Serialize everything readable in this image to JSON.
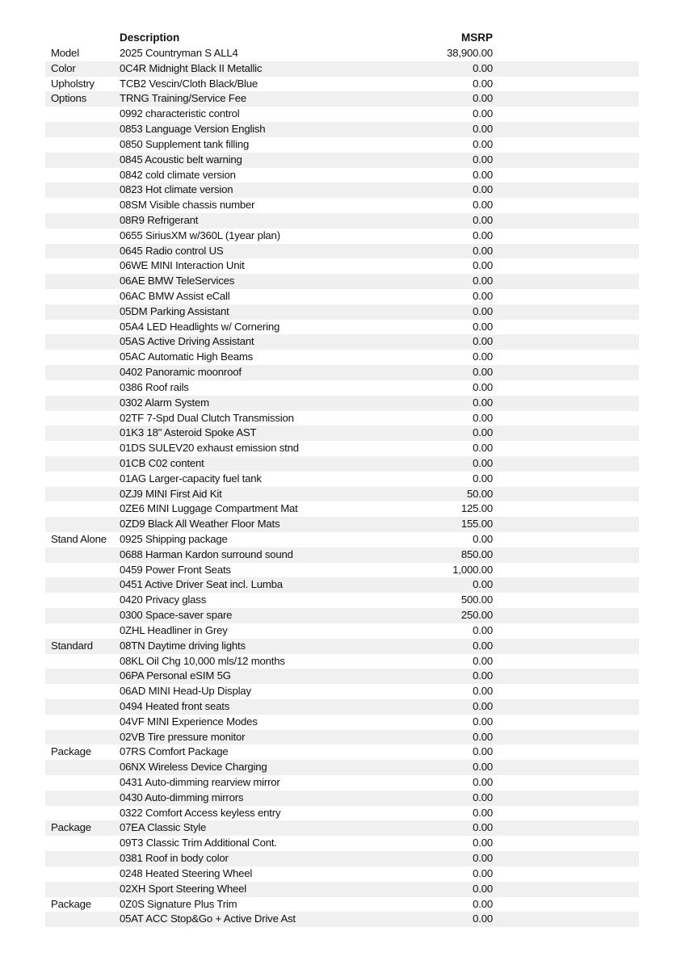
{
  "header": {
    "description": "Description",
    "msrp": "MSRP"
  },
  "rows": [
    {
      "category": "Model",
      "description": "2025 Countryman S ALL4",
      "msrp": "38,900.00"
    },
    {
      "category": "Color",
      "description": "0C4R Midnight Black II Metallic",
      "msrp": "0.00"
    },
    {
      "category": "Upholstry",
      "description": "TCB2 Vescin/Cloth Black/Blue",
      "msrp": "0.00"
    },
    {
      "category": "Options",
      "description": "TRNG Training/Service Fee",
      "msrp": "0.00"
    },
    {
      "category": "",
      "description": "0992 characteristic control",
      "msrp": "0.00"
    },
    {
      "category": "",
      "description": "0853 Language Version English",
      "msrp": "0.00"
    },
    {
      "category": "",
      "description": "0850 Supplement tank filling",
      "msrp": "0.00"
    },
    {
      "category": "",
      "description": "0845 Acoustic belt warning",
      "msrp": "0.00"
    },
    {
      "category": "",
      "description": "0842 cold climate version",
      "msrp": "0.00"
    },
    {
      "category": "",
      "description": "0823 Hot climate version",
      "msrp": "0.00"
    },
    {
      "category": "",
      "description": "08SM Visible chassis number",
      "msrp": "0.00"
    },
    {
      "category": "",
      "description": "08R9 Refrigerant",
      "msrp": "0.00"
    },
    {
      "category": "",
      "description": "0655 SiriusXM w/360L (1year plan)",
      "msrp": "0.00"
    },
    {
      "category": "",
      "description": "0645 Radio control US",
      "msrp": "0.00"
    },
    {
      "category": "",
      "description": "06WE MINI Interaction Unit",
      "msrp": "0.00"
    },
    {
      "category": "",
      "description": "06AE BMW TeleServices",
      "msrp": "0.00"
    },
    {
      "category": "",
      "description": "06AC BMW Assist eCall",
      "msrp": "0.00"
    },
    {
      "category": "",
      "description": "05DM Parking Assistant",
      "msrp": "0.00"
    },
    {
      "category": "",
      "description": "05A4 LED Headlights w/ Cornering",
      "msrp": "0.00"
    },
    {
      "category": "",
      "description": "05AS Active Driving Assistant",
      "msrp": "0.00"
    },
    {
      "category": "",
      "description": "05AC Automatic High Beams",
      "msrp": "0.00"
    },
    {
      "category": "",
      "description": "0402 Panoramic moonroof",
      "msrp": "0.00"
    },
    {
      "category": "",
      "description": "0386 Roof rails",
      "msrp": "0.00"
    },
    {
      "category": "",
      "description": "0302 Alarm System",
      "msrp": "0.00"
    },
    {
      "category": "",
      "description": "02TF 7-Spd Dual Clutch Transmission",
      "msrp": "0.00"
    },
    {
      "category": "",
      "description": "01K3 18\" Asteroid Spoke AST",
      "msrp": "0.00"
    },
    {
      "category": "",
      "description": "01DS SULEV20 exhaust emission stnd",
      "msrp": "0.00"
    },
    {
      "category": "",
      "description": "01CB C02 content",
      "msrp": "0.00"
    },
    {
      "category": "",
      "description": "01AG Larger-capacity fuel tank",
      "msrp": "0.00"
    },
    {
      "category": "",
      "description": "0ZJ9 MINI First Aid Kit",
      "msrp": "50.00"
    },
    {
      "category": "",
      "description": "0ZE6 MINI Luggage Compartment Mat",
      "msrp": "125.00"
    },
    {
      "category": "",
      "description": "0ZD9 Black All Weather Floor Mats",
      "msrp": "155.00"
    },
    {
      "category": "Stand Alone",
      "description": "0925 Shipping package",
      "msrp": "0.00"
    },
    {
      "category": "",
      "description": "0688 Harman Kardon surround sound",
      "msrp": "850.00"
    },
    {
      "category": "",
      "description": "0459 Power Front Seats",
      "msrp": "1,000.00"
    },
    {
      "category": "",
      "description": "0451 Active Driver Seat incl. Lumba",
      "msrp": "0.00"
    },
    {
      "category": "",
      "description": "0420 Privacy glass",
      "msrp": "500.00"
    },
    {
      "category": "",
      "description": "0300 Space-saver spare",
      "msrp": "250.00"
    },
    {
      "category": "",
      "description": "0ZHL Headliner in Grey",
      "msrp": "0.00"
    },
    {
      "category": "Standard",
      "description": "08TN Daytime driving lights",
      "msrp": "0.00"
    },
    {
      "category": "",
      "description": "08KL Oil Chg 10,000 mls/12 months",
      "msrp": "0.00"
    },
    {
      "category": "",
      "description": "06PA Personal eSIM 5G",
      "msrp": "0.00"
    },
    {
      "category": "",
      "description": "06AD MINI Head-Up Display",
      "msrp": "0.00"
    },
    {
      "category": "",
      "description": "0494 Heated front seats",
      "msrp": "0.00"
    },
    {
      "category": "",
      "description": "04VF MINI Experience Modes",
      "msrp": "0.00"
    },
    {
      "category": "",
      "description": "02VB Tire pressure monitor",
      "msrp": "0.00"
    },
    {
      "category": "Package",
      "description": "07RS Comfort Package",
      "msrp": "0.00"
    },
    {
      "category": "",
      "description": "06NX Wireless Device Charging",
      "msrp": "0.00"
    },
    {
      "category": "",
      "description": "0431 Auto-dimming rearview mirror",
      "msrp": "0.00"
    },
    {
      "category": "",
      "description": "0430 Auto-dimming mirrors",
      "msrp": "0.00"
    },
    {
      "category": "",
      "description": "0322 Comfort Access keyless entry",
      "msrp": "0.00"
    },
    {
      "category": "Package",
      "description": "07EA Classic Style",
      "msrp": "0.00"
    },
    {
      "category": "",
      "description": "09T3 Classic Trim Additional Cont.",
      "msrp": "0.00"
    },
    {
      "category": "",
      "description": "0381 Roof in body color",
      "msrp": "0.00"
    },
    {
      "category": "",
      "description": "0248 Heated Steering Wheel",
      "msrp": "0.00"
    },
    {
      "category": "",
      "description": "02XH Sport Steering Wheel",
      "msrp": "0.00"
    },
    {
      "category": "Package",
      "description": "0Z0S Signature Plus Trim",
      "msrp": "0.00"
    },
    {
      "category": "",
      "description": "05AT ACC Stop&Go + Active Drive Ast",
      "msrp": "0.00"
    }
  ]
}
